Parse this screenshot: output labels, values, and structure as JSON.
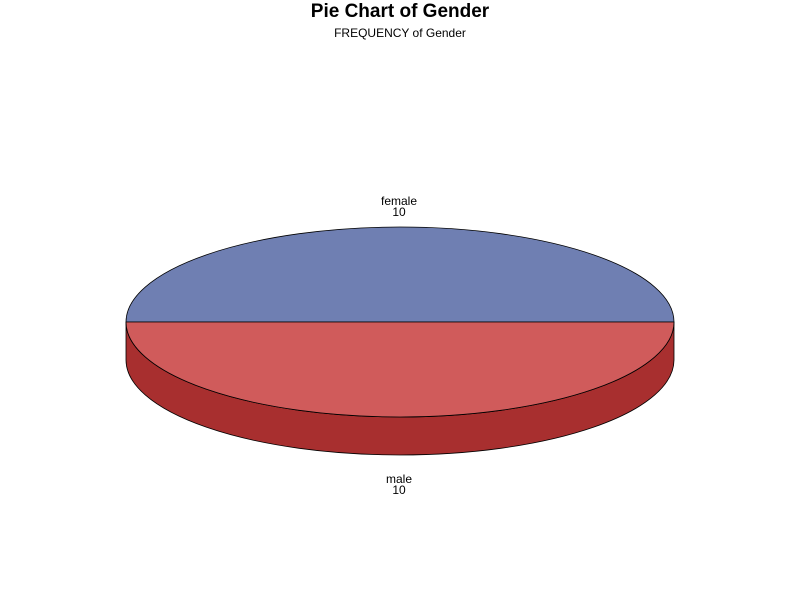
{
  "chart_data": {
    "type": "pie",
    "title": "Pie Chart of Gender",
    "subtitle": "FREQUENCY of Gender",
    "style": "3d",
    "slices": [
      {
        "label": "female",
        "value": 10,
        "color": "#6f7fb2",
        "side_color": "#4f5f92"
      },
      {
        "label": "male",
        "value": 10,
        "color": "#d05b5b",
        "side_color": "#a82f2f"
      }
    ]
  }
}
